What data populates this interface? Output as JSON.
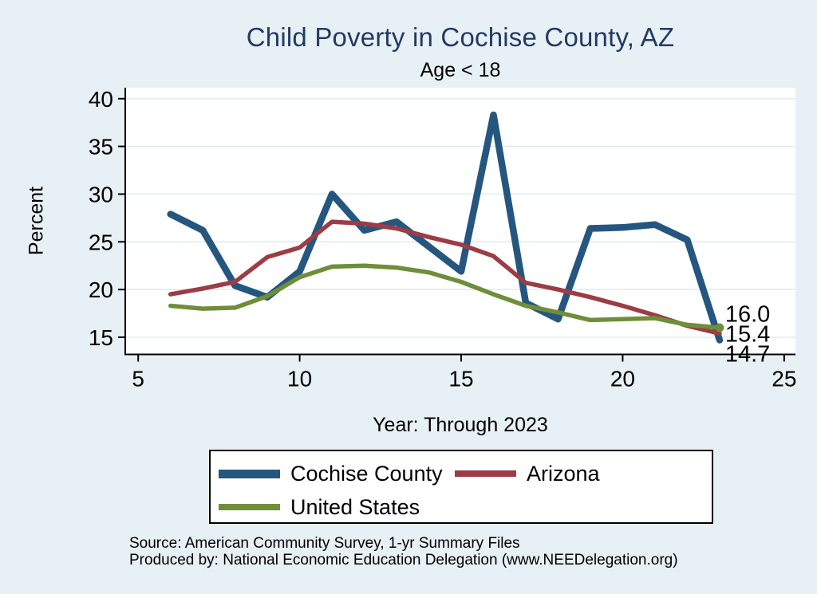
{
  "colors": {
    "background": "#e7f0f4",
    "plot_background": "#ffffff",
    "gridline": "#e3edf2",
    "axis": "#000000",
    "title_text": "#233a65",
    "cochise_blue": "#25567f",
    "arizona_red": "#9d3c44",
    "us_green": "#6f8e39"
  },
  "chart_data": {
    "type": "line",
    "title": "Child Poverty in Cochise County, AZ",
    "subtitle": "Age < 18",
    "xlabel": "Year: Through 2023",
    "ylabel": "Percent",
    "grid": true,
    "legend_position": "bottom",
    "xlim": [
      4.6,
      25.35
    ],
    "ylim": [
      13.2,
      41.15
    ],
    "xticks": [
      5,
      10,
      15,
      20,
      25
    ],
    "yticks": [
      15,
      20,
      25,
      30,
      35,
      40
    ],
    "x": [
      6,
      7,
      8,
      9,
      10,
      11,
      12,
      13,
      14,
      15,
      16,
      17,
      18,
      19,
      20,
      21,
      22,
      23
    ],
    "series": [
      {
        "name": "Cochise County",
        "color": "#25567f",
        "line_width": 8.5,
        "end_label": "14.7",
        "end_marker": false,
        "values": [
          27.9,
          26.2,
          20.4,
          19.2,
          21.9,
          30.0,
          26.2,
          27.1,
          24.5,
          21.9,
          38.3,
          18.6,
          16.9,
          26.4,
          26.5,
          26.8,
          25.2,
          14.7
        ]
      },
      {
        "name": "Arizona",
        "color": "#9d3c44",
        "line_width": 5.5,
        "end_label": "15.4",
        "end_marker": false,
        "values": [
          19.5,
          20.1,
          20.8,
          23.4,
          24.4,
          27.1,
          26.9,
          26.4,
          25.5,
          24.7,
          23.5,
          20.7,
          20.0,
          19.2,
          18.3,
          17.3,
          16.2,
          15.4
        ]
      },
      {
        "name": "United States",
        "color": "#6f8e39",
        "line_width": 5.5,
        "end_label": "16.0",
        "end_marker": true,
        "values": [
          18.3,
          18.0,
          18.1,
          19.3,
          21.3,
          22.4,
          22.5,
          22.3,
          21.8,
          20.8,
          19.5,
          18.3,
          17.6,
          16.8,
          16.9,
          17.0,
          16.3,
          16.0
        ]
      }
    ]
  },
  "footer": {
    "source_line1": "Source: American Community Survey, 1-yr Summary Files",
    "source_line2": "Produced by: National Economic Education Delegation (www.NEEDelegation.org)"
  }
}
